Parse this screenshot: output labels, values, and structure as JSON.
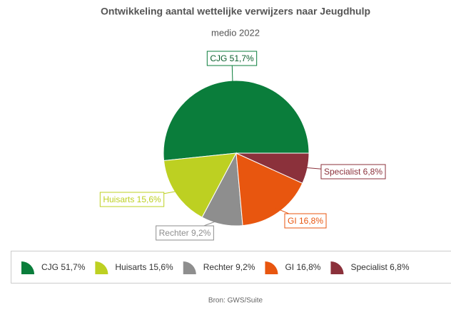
{
  "chart_data": {
    "type": "pie",
    "title": "Ontwikkeling aantal wettelijke verwijzers naar Jeugdhulp",
    "subtitle": "medio 2022",
    "categories": [
      "CJG 51,7%",
      "Huisarts 15,6%",
      "Rechter 9,2%",
      "GI 16,8%",
      "Specialist 6,8%"
    ],
    "values": [
      51.7,
      15.6,
      9.2,
      16.8,
      6.8
    ],
    "colors": [
      "#0a7d3b",
      "#bdd022",
      "#8e8e8e",
      "#e8560f",
      "#8b313b"
    ],
    "source": "Bron: GWS/Suite",
    "legend": "bottom"
  }
}
